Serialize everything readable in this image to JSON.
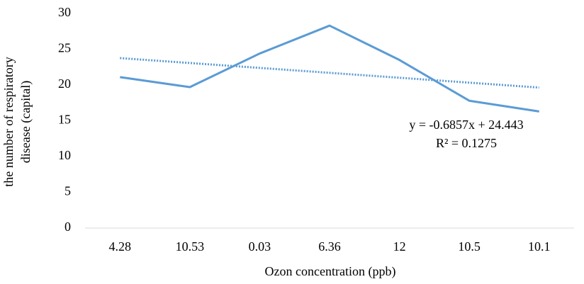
{
  "chart_data": {
    "type": "line",
    "categories": [
      "4.28",
      "10.53",
      "0.03",
      "6.36",
      "12",
      "10.5",
      "10.1"
    ],
    "series": [
      {
        "color": "#5b9bd5",
        "values": [
          21.1,
          19.7,
          24.4,
          28.3,
          23.5,
          17.8,
          16.3
        ]
      }
    ],
    "ylim": [
      0,
      30
    ],
    "yticks": [
      0,
      5,
      10,
      15,
      20,
      25,
      30
    ],
    "ylabel": [
      "the number of respiratory",
      "disease (capital)"
    ],
    "xlabel": "Ozon concentration (ppb)",
    "trendline": {
      "color": "#5b9bd5",
      "values": [
        23.76,
        19.64
      ],
      "equation": "y = -0.6857x + 24.443",
      "r2": "R² = 0.1275"
    }
  }
}
